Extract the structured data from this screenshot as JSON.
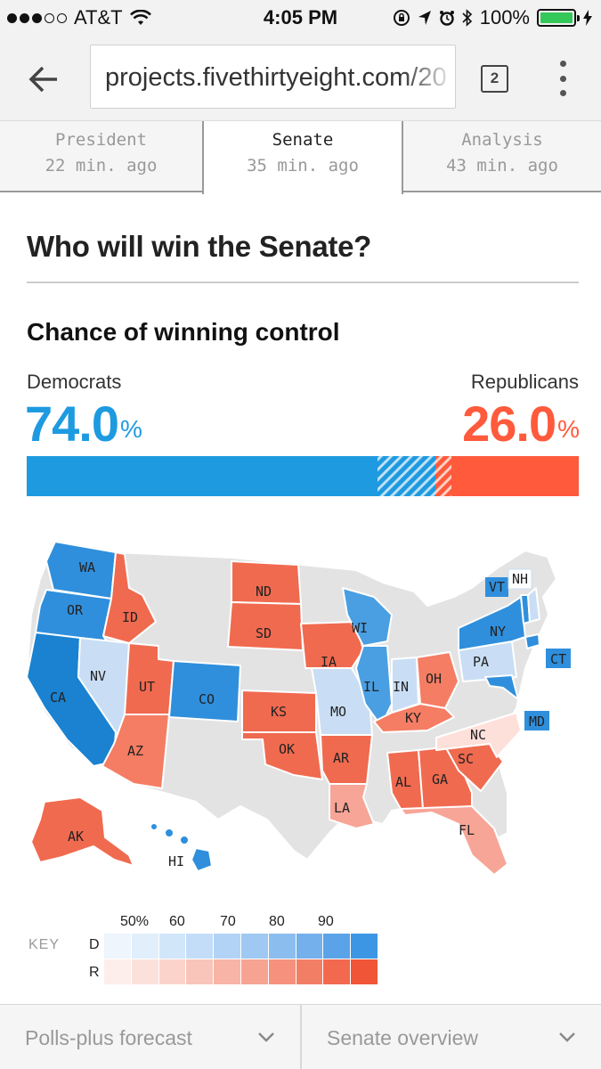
{
  "status_bar": {
    "carrier": "AT&T",
    "time": "4:05 PM",
    "battery": "100%",
    "signal_bars": 3,
    "signal_total": 5
  },
  "browser": {
    "url": "projects.fivethirtyeight.com/20",
    "tab_count": "2"
  },
  "tabs": [
    {
      "label": "President",
      "time": "22 min. ago",
      "active": false
    },
    {
      "label": "Senate",
      "time": "35 min. ago",
      "active": true
    },
    {
      "label": "Analysis",
      "time": "43 min. ago",
      "active": false
    }
  ],
  "page": {
    "title": "Who will win the Senate?",
    "subtitle": "Chance of winning control"
  },
  "forecast": {
    "dem_label": "Democrats",
    "dem_pct": "74.0",
    "rep_label": "Republicans",
    "rep_pct": "26.0",
    "pct_symbol": "%",
    "dem_color": "#1e9ae0",
    "rep_color": "#ff5a3c"
  },
  "map": {
    "states": [
      {
        "abbr": "WA",
        "party": "D",
        "level": 4
      },
      {
        "abbr": "OR",
        "party": "D",
        "level": 4
      },
      {
        "abbr": "CA",
        "party": "D",
        "level": 5
      },
      {
        "abbr": "NV",
        "party": "D",
        "level": 1
      },
      {
        "abbr": "ID",
        "party": "R",
        "level": 4
      },
      {
        "abbr": "UT",
        "party": "R",
        "level": 4
      },
      {
        "abbr": "AZ",
        "party": "R",
        "level": 3
      },
      {
        "abbr": "CO",
        "party": "D",
        "level": 4
      },
      {
        "abbr": "ND",
        "party": "R",
        "level": 4
      },
      {
        "abbr": "SD",
        "party": "R",
        "level": 4
      },
      {
        "abbr": "KS",
        "party": "R",
        "level": 4
      },
      {
        "abbr": "OK",
        "party": "R",
        "level": 4
      },
      {
        "abbr": "IA",
        "party": "R",
        "level": 4
      },
      {
        "abbr": "AR",
        "party": "R",
        "level": 4
      },
      {
        "abbr": "LA",
        "party": "R",
        "level": 2
      },
      {
        "abbr": "MO",
        "party": "D",
        "level": 1
      },
      {
        "abbr": "WI",
        "party": "D",
        "level": 3
      },
      {
        "abbr": "IL",
        "party": "D",
        "level": 3
      },
      {
        "abbr": "IN",
        "party": "D",
        "level": 1
      },
      {
        "abbr": "OH",
        "party": "R",
        "level": 3
      },
      {
        "abbr": "KY",
        "party": "R",
        "level": 3
      },
      {
        "abbr": "AL",
        "party": "R",
        "level": 4
      },
      {
        "abbr": "GA",
        "party": "R",
        "level": 4
      },
      {
        "abbr": "SC",
        "party": "R",
        "level": 4
      },
      {
        "abbr": "NC",
        "party": "R",
        "level": 1
      },
      {
        "abbr": "FL",
        "party": "R",
        "level": 2
      },
      {
        "abbr": "PA",
        "party": "D",
        "level": 1
      },
      {
        "abbr": "NY",
        "party": "D",
        "level": 4
      },
      {
        "abbr": "VT",
        "party": "D",
        "level": 4
      },
      {
        "abbr": "NH",
        "party": "D",
        "level": 1
      },
      {
        "abbr": "CT",
        "party": "D",
        "level": 4
      },
      {
        "abbr": "MD",
        "party": "D",
        "level": 4
      },
      {
        "abbr": "AK",
        "party": "R",
        "level": 4
      },
      {
        "abbr": "HI",
        "party": "D",
        "level": 4
      }
    ]
  },
  "key": {
    "title": "KEY",
    "row_d": "D",
    "row_r": "R",
    "ticks": [
      "50%",
      "60",
      "70",
      "80",
      "90"
    ],
    "d_colors": [
      "#eef5fd",
      "#e1eefb",
      "#d2e6fa",
      "#c3ddf8",
      "#b2d3f5",
      "#9fc8f2",
      "#8bbdef",
      "#74b0ec",
      "#5aa3e8",
      "#3c96e4"
    ],
    "r_colors": [
      "#fdeeeb",
      "#fce1db",
      "#fbd3cb",
      "#f9c4b9",
      "#f8b4a6",
      "#f6a392",
      "#f5917c",
      "#f37e66",
      "#f2694f",
      "#f05537"
    ]
  },
  "bottom": {
    "left": "Polls-plus forecast",
    "right": "Senate overview"
  }
}
